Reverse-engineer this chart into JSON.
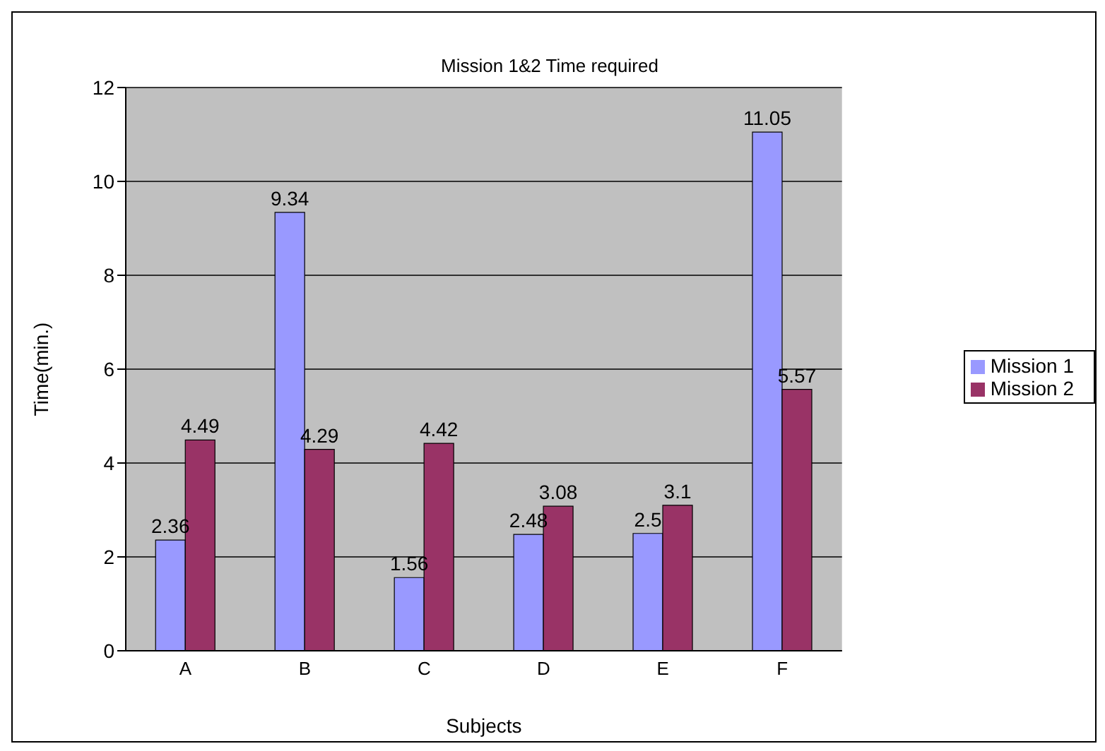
{
  "chart_data": {
    "type": "bar",
    "title": "Mission 1&2  Time required",
    "xlabel": "Subjects",
    "ylabel": "Time(min.)",
    "categories": [
      "A",
      "B",
      "C",
      "D",
      "E",
      "F"
    ],
    "series": [
      {
        "name": "Mission 1",
        "color": "#9999ff",
        "values": [
          2.36,
          9.34,
          1.56,
          2.48,
          2.5,
          11.05
        ]
      },
      {
        "name": "Mission 2",
        "color": "#993366",
        "values": [
          4.49,
          4.29,
          4.42,
          3.08,
          3.1,
          5.57
        ]
      }
    ],
    "ylim": [
      0,
      12
    ],
    "yticks": [
      0,
      2,
      4,
      6,
      8,
      10,
      12
    ],
    "grid": "y",
    "legend": "right",
    "data_labels": true
  }
}
